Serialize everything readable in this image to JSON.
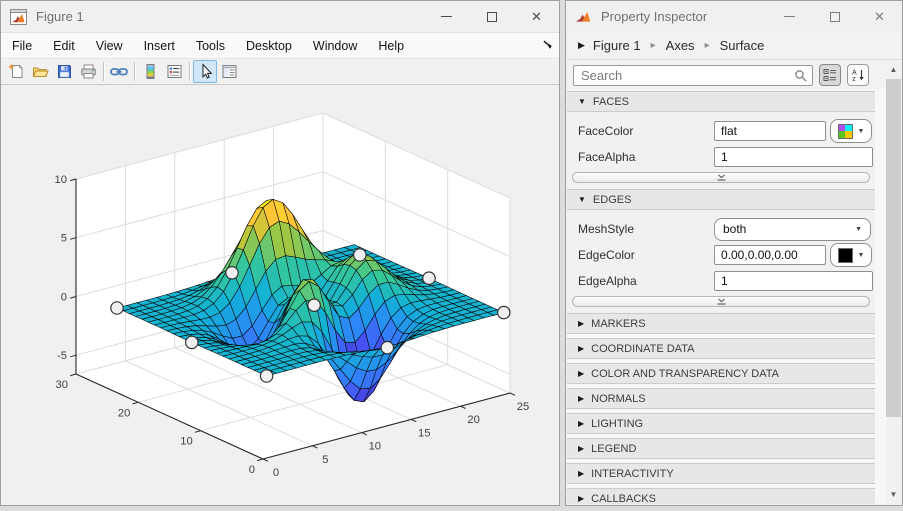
{
  "figure_window": {
    "title": "Figure 1",
    "menu": [
      "File",
      "Edit",
      "View",
      "Insert",
      "Tools",
      "Desktop",
      "Window",
      "Help"
    ],
    "toolbar": [
      {
        "icon": "new-figure"
      },
      {
        "icon": "open-file"
      },
      {
        "icon": "save-figure"
      },
      {
        "icon": "print-figure"
      },
      {
        "icon": "separator"
      },
      {
        "icon": "link-plot"
      },
      {
        "icon": "separator"
      },
      {
        "icon": "insert-colorbar"
      },
      {
        "icon": "insert-legend"
      },
      {
        "icon": "separator"
      },
      {
        "icon": "edit-plot",
        "active": true
      },
      {
        "icon": "property-inspector"
      }
    ]
  },
  "chart_data": {
    "type": "surface",
    "title": "",
    "source_function": "peaks",
    "grid_n": 25,
    "x": {
      "lim": [
        0,
        25
      ],
      "ticks": [
        0,
        5,
        10,
        15,
        20,
        25
      ]
    },
    "y": {
      "lim": [
        0,
        30
      ],
      "ticks": [
        0,
        10,
        20,
        30
      ]
    },
    "z": {
      "lim": [
        -6.6,
        10
      ],
      "ticks": [
        -5,
        0,
        5,
        10
      ]
    },
    "view": {
      "azimuth": -37.5,
      "elevation": 30
    },
    "grid_on": true,
    "grid_color": "#dcdcdc",
    "wall_color": "#ffffff",
    "axis_color": "#262626",
    "label_color": "#3f3f3f",
    "colormap": {
      "name": "parula",
      "anchors": [
        [
          0.2422,
          0.1504,
          0.6603
        ],
        [
          0.281,
          0.3228,
          0.9579
        ],
        [
          0.1786,
          0.5289,
          0.9682
        ],
        [
          0.0689,
          0.6948,
          0.8394
        ],
        [
          0.2161,
          0.7843,
          0.5923
        ],
        [
          0.672,
          0.7793,
          0.2227
        ],
        [
          0.997,
          0.7659,
          0.2199
        ],
        [
          0.9769,
          0.9839,
          0.0805
        ]
      ]
    },
    "surface_style": {
      "face_color": "flat",
      "edge_color": "#000000",
      "edge_width": 0.55,
      "mesh_style": "both"
    },
    "markers": {
      "symbol": "o",
      "fill": "#f0f0f0",
      "edge": "#333333",
      "size": 6.2,
      "vertices": [
        [
          1,
          25
        ],
        [
          1,
          13
        ],
        [
          12,
          24
        ],
        [
          1,
          1
        ],
        [
          14,
          14
        ],
        [
          18,
          13
        ],
        [
          17,
          7
        ],
        [
          25,
          13
        ],
        [
          25,
          1
        ]
      ]
    }
  },
  "inspector": {
    "window_title": "Property Inspector",
    "breadcrumb": [
      "Figure 1",
      "Axes",
      "Surface"
    ],
    "search_placeholder": "Search",
    "sections": {
      "faces": {
        "title": "FACES",
        "rows": {
          "face_color": {
            "label": "FaceColor",
            "value": "flat",
            "swatch_colors": [
              "#b14af0",
              "#00f0ff",
              "#58c322",
              "#ffc800"
            ]
          },
          "face_alpha": {
            "label": "FaceAlpha",
            "value": "1"
          }
        }
      },
      "edges": {
        "title": "EDGES",
        "rows": {
          "mesh_style": {
            "label": "MeshStyle",
            "value": "both"
          },
          "edge_color": {
            "label": "EdgeColor",
            "value": "0.00,0.00,0.00",
            "swatch_color": "#000000"
          },
          "edge_alpha": {
            "label": "EdgeAlpha",
            "value": "1"
          }
        }
      },
      "collapsed": [
        "MARKERS",
        "COORDINATE DATA",
        "COLOR AND TRANSPARENCY DATA",
        "NORMALS",
        "LIGHTING",
        "LEGEND",
        "INTERACTIVITY",
        "CALLBACKS"
      ]
    }
  }
}
